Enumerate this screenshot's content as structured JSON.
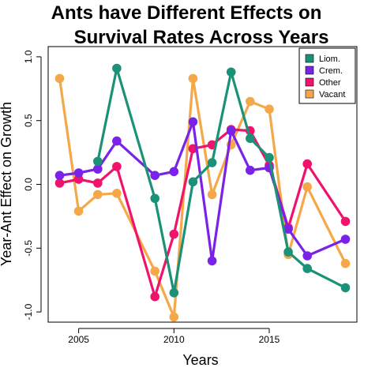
{
  "chart_data": {
    "type": "line",
    "title_lines": [
      "Ants have Different Effects on",
      "Survival Rates Across Years"
    ],
    "xlabel": "Years",
    "ylabel": "Year-Ant Effect on Growth",
    "xlim": [
      2003.4,
      2019.6
    ],
    "ylim": [
      -1.08,
      1.08
    ],
    "x_ticks": [
      2005,
      2010,
      2015
    ],
    "y_ticks": [
      -1.0,
      -0.5,
      0.0,
      0.5,
      1.0
    ],
    "y_tick_labels": [
      "-1.0",
      "-0.5",
      "0.0",
      "0.5",
      "1.0"
    ],
    "legend_position": "top-right",
    "series": [
      {
        "name": "Liom.",
        "color": "#1b9277",
        "points": [
          [
            2006,
            0.18
          ],
          [
            2007,
            0.91
          ],
          [
            2009,
            -0.11
          ],
          [
            2010,
            -0.85
          ],
          [
            2011,
            0.02
          ],
          [
            2012,
            0.17
          ],
          [
            2013,
            0.88
          ],
          [
            2014,
            0.36
          ],
          [
            2015,
            0.21
          ],
          [
            2016,
            -0.53
          ],
          [
            2017,
            -0.66
          ],
          [
            2019,
            -0.81
          ]
        ]
      },
      {
        "name": "Crem.",
        "color": "#7a22e8",
        "points": [
          [
            2004,
            0.07
          ],
          [
            2005,
            0.09
          ],
          [
            2006,
            0.12
          ],
          [
            2007,
            0.34
          ],
          [
            2009,
            0.07
          ],
          [
            2010,
            0.1
          ],
          [
            2011,
            0.49
          ],
          [
            2012,
            -0.6
          ],
          [
            2013,
            0.42
          ],
          [
            2014,
            0.11
          ],
          [
            2015,
            0.13
          ],
          [
            2016,
            -0.35
          ],
          [
            2017,
            -0.56
          ],
          [
            2019,
            -0.43
          ]
        ]
      },
      {
        "name": "Other",
        "color": "#f0136b",
        "points": [
          [
            2004,
            0.01
          ],
          [
            2005,
            0.04
          ],
          [
            2006,
            0.01
          ],
          [
            2007,
            0.14
          ],
          [
            2009,
            -0.88
          ],
          [
            2010,
            -0.39
          ],
          [
            2011,
            0.28
          ],
          [
            2012,
            0.31
          ],
          [
            2013,
            0.43
          ],
          [
            2014,
            0.42
          ],
          [
            2015,
            0.15
          ],
          [
            2016,
            -0.34
          ],
          [
            2017,
            0.16
          ],
          [
            2019,
            -0.29
          ]
        ]
      },
      {
        "name": "Vacant",
        "color": "#f5a849",
        "points": [
          [
            2004,
            0.83
          ],
          [
            2005,
            -0.21
          ],
          [
            2006,
            -0.08
          ],
          [
            2007,
            -0.07
          ],
          [
            2009,
            -0.68
          ],
          [
            2010,
            -1.04
          ],
          [
            2011,
            0.83
          ],
          [
            2012,
            -0.08
          ],
          [
            2013,
            0.31
          ],
          [
            2014,
            0.65
          ],
          [
            2015,
            0.59
          ],
          [
            2016,
            -0.55
          ],
          [
            2017,
            -0.02
          ],
          [
            2019,
            -0.62
          ]
        ]
      }
    ],
    "draw_order": [
      "Vacant",
      "Other",
      "Crem.",
      "Liom."
    ]
  }
}
